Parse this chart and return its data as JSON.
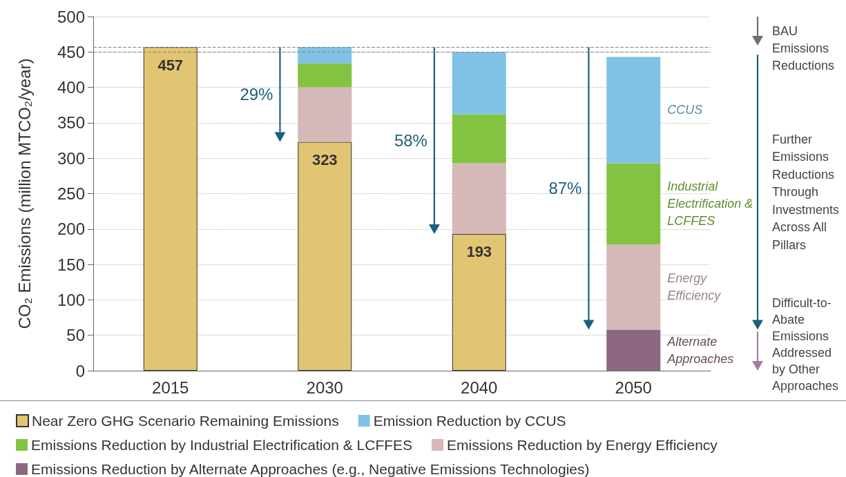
{
  "chart_data": {
    "type": "bar",
    "stacked": true,
    "ylabel": "CO₂ Emissions (million MTCO₂/year)",
    "categories": [
      "2015",
      "2030",
      "2040",
      "2050"
    ],
    "ylim": [
      0,
      500
    ],
    "yticks": [
      0,
      50,
      100,
      150,
      200,
      250,
      300,
      350,
      400,
      450,
      500
    ],
    "grid": "y",
    "legend": "bottom",
    "ref_lines": [
      {
        "axis": "y",
        "value": 457,
        "color": "#808080",
        "line_style": "dashed"
      },
      {
        "axis": "y",
        "value": 450,
        "color": "#808080",
        "line_style": "dashed"
      }
    ],
    "series": [
      {
        "name": "Near Zero GHG Scenario Remaining Emissions",
        "color": "#e2c572",
        "values": [
          457,
          323,
          193,
          null
        ],
        "value_labels": [
          "457",
          "323",
          "193",
          null
        ]
      },
      {
        "name": "Emissions Reduction by Alternate Approaches (e.g., Negative Emissions Technologies)",
        "color": "#8b6880",
        "values": [
          null,
          null,
          null,
          58
        ]
      },
      {
        "name": "Emissions Reduction by Energy Efficiency",
        "color": "#d6b8b9",
        "values": [
          null,
          77,
          100,
          120
        ]
      },
      {
        "name": "Emissions Reduction by Industrial Electrification & LCFFES",
        "color": "#84c341",
        "values": [
          null,
          34,
          69,
          115
        ]
      },
      {
        "name": "Emission Reduction by CCUS",
        "color": "#80c2e6",
        "values": [
          null,
          23,
          88,
          150
        ]
      }
    ],
    "annotations": [
      "29%",
      "58%",
      "87%",
      "CCUS",
      "Industrial Electrification & LCFFES",
      "Energy Efficiency",
      "Alternate Approaches",
      "BAU Emissions Reductions",
      "Further Emissions Reductions Through Investments Across All Pillars",
      "Difficult-to-Abate Emissions Addressed by Other Approaches"
    ]
  }
}
